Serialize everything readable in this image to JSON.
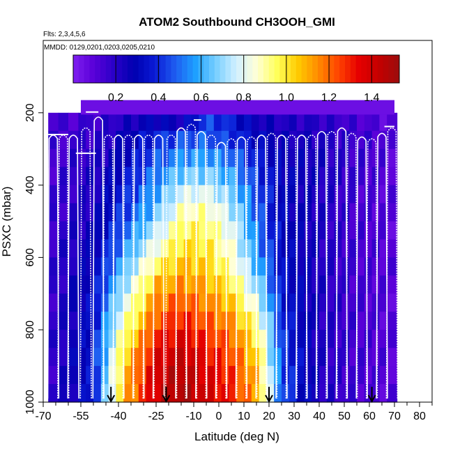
{
  "chart_data": {
    "type": "heatmap",
    "title": "ATOM2 Southbound CH3OOH_GMI",
    "annotations": [
      "Flts: 2,3,4,5,6",
      "MMDD: 0129,0201,0203,0205,0210"
    ],
    "xlabel": "Latitude (deg N)",
    "ylabel": "PSXC (mbar)",
    "xlim": [
      -70,
      85
    ],
    "ylim": [
      1000,
      0
    ],
    "x_ticks": [
      -70,
      -55,
      -40,
      -25,
      -10,
      0,
      10,
      20,
      30,
      40,
      50,
      60,
      70,
      80
    ],
    "x_tick_labels": [
      "-70",
      "-55",
      "-40",
      "-25",
      "-10",
      "0",
      "10",
      "20",
      "30",
      "40",
      "50",
      "60",
      "70",
      "80"
    ],
    "x_minor_ticks": [
      -65,
      -60,
      -50,
      -45,
      -35,
      -30,
      -20,
      -15,
      -5,
      5,
      15,
      25,
      35,
      45,
      55,
      65,
      75,
      85
    ],
    "y_ticks": [
      200,
      400,
      600,
      800,
      1000
    ],
    "y_tick_labels": [
      "200",
      "400",
      "600",
      "800",
      "1000"
    ],
    "colorbar": {
      "range": [
        0,
        1.53
      ],
      "ticks": [
        0.2,
        0.4,
        0.6,
        0.8,
        1.0,
        1.2,
        1.4
      ],
      "tick_labels": [
        "0.2",
        "0.4",
        "0.6",
        "0.8",
        "1.0",
        "1.2",
        "1.4"
      ],
      "colors": [
        "#7f1ff0",
        "#5a00d8",
        "#2a00c8",
        "#0000b0",
        "#0a1ad6",
        "#1e5cf0",
        "#1ea0ff",
        "#78cfff",
        "#d2f0ff",
        "#ffffd6",
        "#ffff5a",
        "#ffcc00",
        "#ff8c00",
        "#ff4400",
        "#e60000",
        "#c40000",
        "#9b0d0d"
      ]
    },
    "lat_edges": [
      -68,
      -64,
      -60,
      -56,
      -53,
      -50,
      -47,
      -44,
      -41,
      -38,
      -35,
      -32,
      -29,
      -26,
      -23,
      -20,
      -17,
      -14,
      -11,
      -8,
      -5,
      -2,
      1,
      4,
      7,
      10,
      13,
      16,
      19,
      22,
      25,
      28,
      31,
      34,
      37,
      40,
      43,
      46,
      49,
      52,
      55,
      58,
      61,
      64,
      67,
      71
    ],
    "pressure_levels": [
      225,
      275,
      325,
      375,
      425,
      475,
      525,
      575,
      625,
      675,
      725,
      775,
      825,
      875,
      925,
      975
    ],
    "sample_grid": {
      "lats": [
        -68,
        -50,
        -38,
        -25,
        -15,
        -5,
        5,
        15,
        25,
        40,
        55,
        71
      ],
      "values": [
        [
          0.12,
          0.16,
          0.22,
          0.3,
          0.25,
          0.45,
          0.38,
          0.26,
          0.22,
          0.2,
          0.14,
          0.08
        ],
        [
          0.14,
          0.18,
          0.26,
          0.4,
          0.46,
          0.48,
          0.42,
          0.32,
          0.25,
          0.22,
          0.16,
          0.1
        ],
        [
          0.14,
          0.2,
          0.3,
          0.46,
          0.55,
          0.58,
          0.5,
          0.38,
          0.28,
          0.24,
          0.16,
          0.1
        ],
        [
          0.14,
          0.22,
          0.34,
          0.52,
          0.66,
          0.68,
          0.58,
          0.42,
          0.3,
          0.24,
          0.16,
          0.1
        ],
        [
          0.15,
          0.22,
          0.38,
          0.58,
          0.78,
          0.8,
          0.66,
          0.46,
          0.3,
          0.22,
          0.14,
          0.1
        ],
        [
          0.15,
          0.24,
          0.42,
          0.64,
          0.88,
          0.9,
          0.74,
          0.48,
          0.3,
          0.22,
          0.14,
          0.1
        ],
        [
          0.16,
          0.26,
          0.48,
          0.74,
          0.96,
          0.96,
          0.8,
          0.52,
          0.32,
          0.22,
          0.14,
          0.1
        ],
        [
          0.16,
          0.28,
          0.54,
          0.84,
          1.02,
          1.0,
          0.84,
          0.56,
          0.32,
          0.22,
          0.14,
          0.1
        ],
        [
          0.16,
          0.3,
          0.62,
          0.96,
          1.08,
          1.04,
          0.9,
          0.62,
          0.34,
          0.22,
          0.14,
          0.1
        ],
        [
          0.16,
          0.32,
          0.7,
          1.08,
          1.14,
          1.1,
          0.98,
          0.7,
          0.36,
          0.22,
          0.14,
          0.1
        ],
        [
          0.16,
          0.34,
          0.78,
          1.16,
          1.22,
          1.16,
          1.06,
          0.8,
          0.38,
          0.22,
          0.14,
          0.1
        ],
        [
          0.16,
          0.34,
          0.86,
          1.22,
          1.3,
          1.22,
          1.14,
          0.9,
          0.4,
          0.22,
          0.14,
          0.1
        ],
        [
          0.16,
          0.36,
          0.94,
          1.3,
          1.38,
          1.28,
          1.2,
          0.98,
          0.42,
          0.22,
          0.14,
          0.1
        ],
        [
          0.16,
          0.36,
          1.02,
          1.36,
          1.44,
          1.34,
          1.24,
          1.04,
          0.44,
          0.22,
          0.14,
          0.1
        ],
        [
          0.16,
          0.36,
          1.06,
          1.4,
          1.48,
          1.38,
          1.28,
          1.08,
          0.46,
          0.22,
          0.14,
          0.1
        ],
        [
          0.16,
          0.36,
          1.08,
          1.4,
          1.5,
          1.4,
          1.3,
          1.1,
          0.46,
          0.22,
          0.14,
          0.1
        ]
      ]
    },
    "profile_centers_lat": [
      -66,
      -62,
      -58,
      -53,
      -48,
      -44,
      -40,
      -36,
      -32,
      -28,
      -24,
      -19,
      -15,
      -11,
      -7,
      -3,
      1,
      5,
      9,
      13,
      17,
      21,
      25,
      29,
      33,
      37,
      41,
      45,
      49,
      53,
      57,
      61,
      65,
      69
    ],
    "profile_top_pressure": [
      260,
      260,
      260,
      240,
      210,
      260,
      260,
      260,
      260,
      260,
      260,
      260,
      240,
      230,
      250,
      260,
      280,
      270,
      265,
      265,
      260,
      255,
      260,
      260,
      260,
      260,
      250,
      250,
      240,
      255,
      265,
      270,
      255,
      240
    ],
    "arrows_lat": [
      -43,
      -21,
      20,
      61
    ]
  }
}
